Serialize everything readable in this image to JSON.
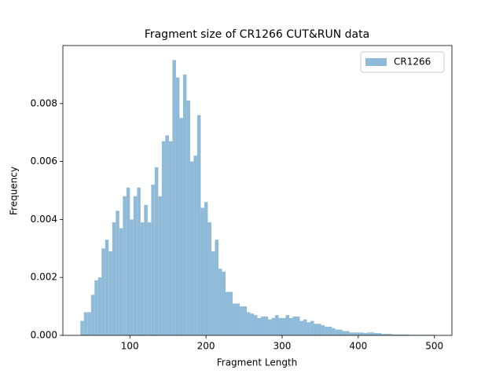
{
  "chart_data": {
    "type": "histogram",
    "title": "Fragment size of CR1266 CUT&RUN data",
    "x_label": "Fragment Length",
    "y_label": "Frequency",
    "legend_position": "upper right",
    "series": [
      {
        "name": "CR1266",
        "color": "#8fbbd9",
        "bins": [
          35,
          39.65,
          44.3,
          48.95,
          53.6,
          58.25,
          62.9,
          67.55,
          72.2,
          76.85,
          81.5,
          86.15,
          90.8,
          95.45,
          100.1,
          104.75,
          109.4,
          114.05,
          118.7,
          123.35,
          128,
          132.65,
          137.3,
          141.95,
          146.6,
          151.25,
          155.9,
          160.55,
          165.2,
          169.85,
          174.5,
          179.15,
          183.8,
          188.45,
          193.1,
          197.75,
          202.4,
          207.05,
          211.7,
          216.35,
          221,
          225.65,
          230.3,
          234.95,
          239.6,
          244.25,
          248.9,
          253.55,
          258.2,
          262.85,
          267.5,
          272.15,
          276.8,
          281.45,
          286.1,
          290.75,
          295.4,
          300.05,
          304.7,
          309.35,
          314,
          318.65,
          323.3,
          327.95,
          332.6,
          337.25,
          341.9,
          346.55,
          351.2,
          355.85,
          360.5,
          365.15,
          369.8,
          374.45,
          379.1,
          383.75,
          388.4,
          393.05,
          397.7,
          402.35,
          407,
          411.65,
          416.3,
          420.95,
          425.6,
          430.25,
          434.9,
          439.55,
          444.2,
          448.85,
          453.5,
          458.15,
          462.8,
          467.45,
          472.1,
          476.75,
          481.4,
          486.05,
          490.7,
          495.35,
          500
        ],
        "counts": [
          0.0005,
          0.0008,
          0.0008,
          0.0014,
          0.0019,
          0.002,
          0.003,
          0.0033,
          0.0029,
          0.0039,
          0.0043,
          0.0037,
          0.0048,
          0.0051,
          0.004,
          0.0048,
          0.0051,
          0.0039,
          0.0045,
          0.0039,
          0.0052,
          0.0058,
          0.0048,
          0.0067,
          0.0069,
          0.0067,
          0.0095,
          0.0089,
          0.0075,
          0.009,
          0.0081,
          0.006,
          0.0062,
          0.0076,
          0.0044,
          0.0046,
          0.0039,
          0.0029,
          0.0033,
          0.0023,
          0.0022,
          0.0015,
          0.0015,
          0.0011,
          0.0011,
          0.001,
          0.001,
          0.0008,
          0.00075,
          0.0007,
          0.0006,
          0.00065,
          0.00065,
          0.00055,
          0.0006,
          0.0007,
          0.0006,
          0.0006,
          0.0007,
          0.0006,
          0.00065,
          0.00065,
          0.0005,
          0.00055,
          0.00045,
          0.0005,
          0.0004,
          0.0004,
          0.00035,
          0.0003,
          0.0003,
          0.00025,
          0.0002,
          0.0002,
          0.00015,
          0.00015,
          0.0001,
          0.0001,
          0.0001,
          0.0001,
          8e-05,
          0.0001,
          0.0001,
          8e-05,
          8e-05,
          5e-05,
          5e-05,
          5e-05,
          3e-05,
          3e-05,
          3e-05,
          3e-05,
          3e-05,
          2e-05,
          2e-05,
          2e-05,
          2e-05,
          2e-05,
          2e-05,
          2e-05
        ]
      }
    ],
    "xlim": [
      12,
      523
    ],
    "xticks": [
      100,
      200,
      300,
      400,
      500
    ],
    "ylim": [
      0,
      0.01
    ],
    "yticks": [
      {
        "value": 0,
        "label": "0.000"
      },
      {
        "value": 0.002,
        "label": "0.002"
      },
      {
        "value": 0.004,
        "label": "0.004"
      },
      {
        "value": 0.006,
        "label": "0.006"
      },
      {
        "value": 0.008,
        "label": "0.008"
      }
    ]
  }
}
